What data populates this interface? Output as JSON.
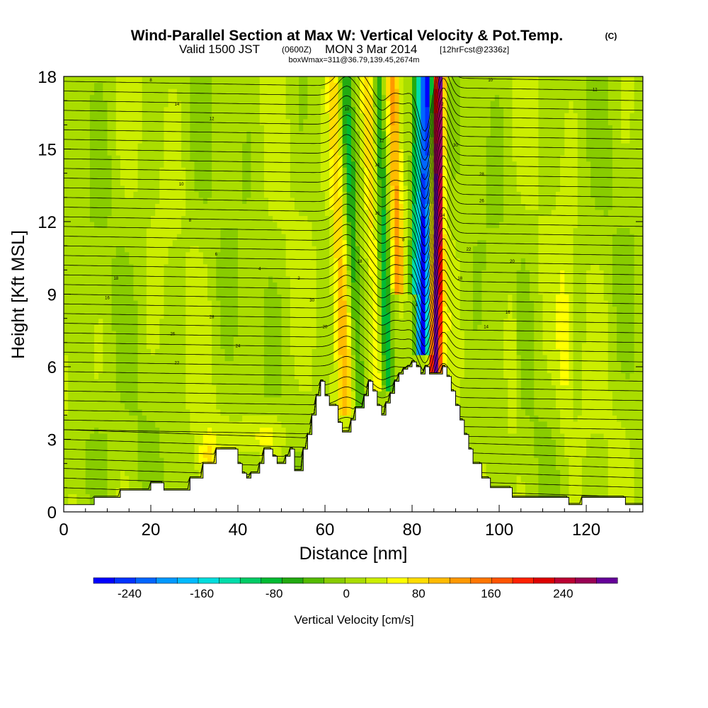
{
  "chart_data": {
    "type": "heatmap",
    "title": "Wind-Parallel Section at Max W: Vertical Velocity & Pot.Temp.",
    "title_mark": "(C)",
    "subtitle": {
      "valid": "Valid 1500 JST",
      "utc": "(0600Z)",
      "day": "MON 3 Mar 2014",
      "forecast": "[12hrFcst@2336z]"
    },
    "box_info": "boxWmax=311@36.79,139.45,2674m",
    "xlabel": "Distance [nm]",
    "ylabel": "Height [Kft MSL]",
    "xlim": [
      0,
      133
    ],
    "ylim": [
      0,
      18
    ],
    "xticks": [
      0,
      20,
      40,
      60,
      80,
      100,
      120
    ],
    "yticks": [
      0,
      3,
      6,
      9,
      12,
      15,
      18
    ],
    "colorbar": {
      "label": "Vertical Velocity [cm/s]",
      "ticks": [
        -240,
        -160,
        -80,
        0,
        80,
        160,
        240
      ],
      "min": -280,
      "max": 300,
      "colors": [
        "#0000ff",
        "#0033ff",
        "#0066ff",
        "#0099ff",
        "#00bbff",
        "#00dddd",
        "#00ddaa",
        "#00cc66",
        "#00bb33",
        "#22aa11",
        "#55bb00",
        "#88cc00",
        "#aadd00",
        "#ccee00",
        "#ffff00",
        "#ffdd00",
        "#ffbb00",
        "#ff9900",
        "#ff7700",
        "#ff5500",
        "#ff2200",
        "#dd0000",
        "#bb0033",
        "#990055",
        "#660099"
      ]
    },
    "terrain": [
      [
        0,
        0.3
      ],
      [
        7,
        0.3
      ],
      [
        7,
        0.6
      ],
      [
        13,
        0.6
      ],
      [
        13,
        0.9
      ],
      [
        20,
        0.9
      ],
      [
        20,
        1.2
      ],
      [
        23,
        1.2
      ],
      [
        23,
        0.9
      ],
      [
        29,
        0.9
      ],
      [
        29,
        1.4
      ],
      [
        32,
        1.4
      ],
      [
        32,
        2.0
      ],
      [
        35,
        2.0
      ],
      [
        35,
        2.6
      ],
      [
        40,
        2.6
      ],
      [
        40,
        2.0
      ],
      [
        41,
        2.0
      ],
      [
        41,
        1.6
      ],
      [
        42,
        1.6
      ],
      [
        42,
        1.4
      ],
      [
        43,
        1.4
      ],
      [
        43,
        1.6
      ],
      [
        45,
        1.6
      ],
      [
        45,
        2.0
      ],
      [
        46,
        2.0
      ],
      [
        46,
        2.6
      ],
      [
        48,
        2.6
      ],
      [
        48,
        2.3
      ],
      [
        49,
        2.3
      ],
      [
        49,
        2.0
      ],
      [
        51,
        2.0
      ],
      [
        51,
        2.3
      ],
      [
        52,
        2.3
      ],
      [
        52,
        2.6
      ],
      [
        53,
        2.6
      ],
      [
        53,
        1.7
      ],
      [
        55,
        1.7
      ],
      [
        55,
        2.6
      ],
      [
        56,
        2.6
      ],
      [
        56,
        3.2
      ],
      [
        57,
        3.2
      ],
      [
        57,
        4.0
      ],
      [
        58,
        4.0
      ],
      [
        58,
        4.8
      ],
      [
        59,
        4.8
      ],
      [
        59,
        5.4
      ],
      [
        60,
        5.4
      ],
      [
        60,
        4.8
      ],
      [
        61,
        4.8
      ],
      [
        61,
        4.4
      ],
      [
        63,
        4.4
      ],
      [
        63,
        3.7
      ],
      [
        64,
        3.7
      ],
      [
        64,
        3.3
      ],
      [
        66,
        3.3
      ],
      [
        66,
        3.8
      ],
      [
        67,
        3.8
      ],
      [
        67,
        4.3
      ],
      [
        69,
        4.3
      ],
      [
        69,
        4.8
      ],
      [
        70,
        4.8
      ],
      [
        70,
        5.4
      ],
      [
        71,
        5.4
      ],
      [
        71,
        5.0
      ],
      [
        72,
        5.0
      ],
      [
        72,
        4.4
      ],
      [
        73,
        4.4
      ],
      [
        73,
        4.0
      ],
      [
        74,
        4.0
      ],
      [
        74,
        4.5
      ],
      [
        75,
        4.5
      ],
      [
        75,
        4.9
      ],
      [
        76,
        4.9
      ],
      [
        76,
        5.4
      ],
      [
        77,
        5.4
      ],
      [
        77,
        5.7
      ],
      [
        78,
        5.7
      ],
      [
        78,
        5.9
      ],
      [
        79,
        5.9
      ],
      [
        79,
        6.0
      ],
      [
        80,
        6.0
      ],
      [
        80,
        6.2
      ],
      [
        81,
        6.2
      ],
      [
        81,
        6.0
      ],
      [
        82,
        6.0
      ],
      [
        82,
        5.7
      ],
      [
        83,
        5.7
      ],
      [
        83,
        6.0
      ],
      [
        84,
        6.0
      ],
      [
        84,
        5.7
      ],
      [
        87,
        5.7
      ],
      [
        87,
        6.0
      ],
      [
        88,
        6.0
      ],
      [
        88,
        5.6
      ],
      [
        89,
        5.6
      ],
      [
        89,
        5.0
      ],
      [
        90,
        5.0
      ],
      [
        90,
        4.4
      ],
      [
        91,
        4.4
      ],
      [
        91,
        3.8
      ],
      [
        92,
        3.8
      ],
      [
        92,
        3.2
      ],
      [
        93,
        3.2
      ],
      [
        93,
        2.6
      ],
      [
        94,
        2.6
      ],
      [
        94,
        2.0
      ],
      [
        96,
        2.0
      ],
      [
        96,
        1.4
      ],
      [
        98,
        1.4
      ],
      [
        98,
        1.0
      ],
      [
        103,
        1.0
      ],
      [
        103,
        0.6
      ],
      [
        109,
        0.6
      ],
      [
        109,
        0.6
      ],
      [
        116,
        0.6
      ],
      [
        116,
        0.3
      ],
      [
        119,
        0.3
      ],
      [
        119,
        0.6
      ],
      [
        129,
        0.6
      ],
      [
        129,
        0.3
      ],
      [
        133,
        0.3
      ]
    ],
    "updraft_band_nm": 85.5,
    "downdraft_band_nm": 82.5,
    "wave_bands_nm": [
      64,
      71.5,
      77
    ],
    "theta_label_samples": [
      "18",
      "16",
      "14",
      "12",
      "10",
      "8",
      "6",
      "4",
      "2",
      "30",
      "28",
      "26",
      "24",
      "22",
      "20"
    ]
  }
}
